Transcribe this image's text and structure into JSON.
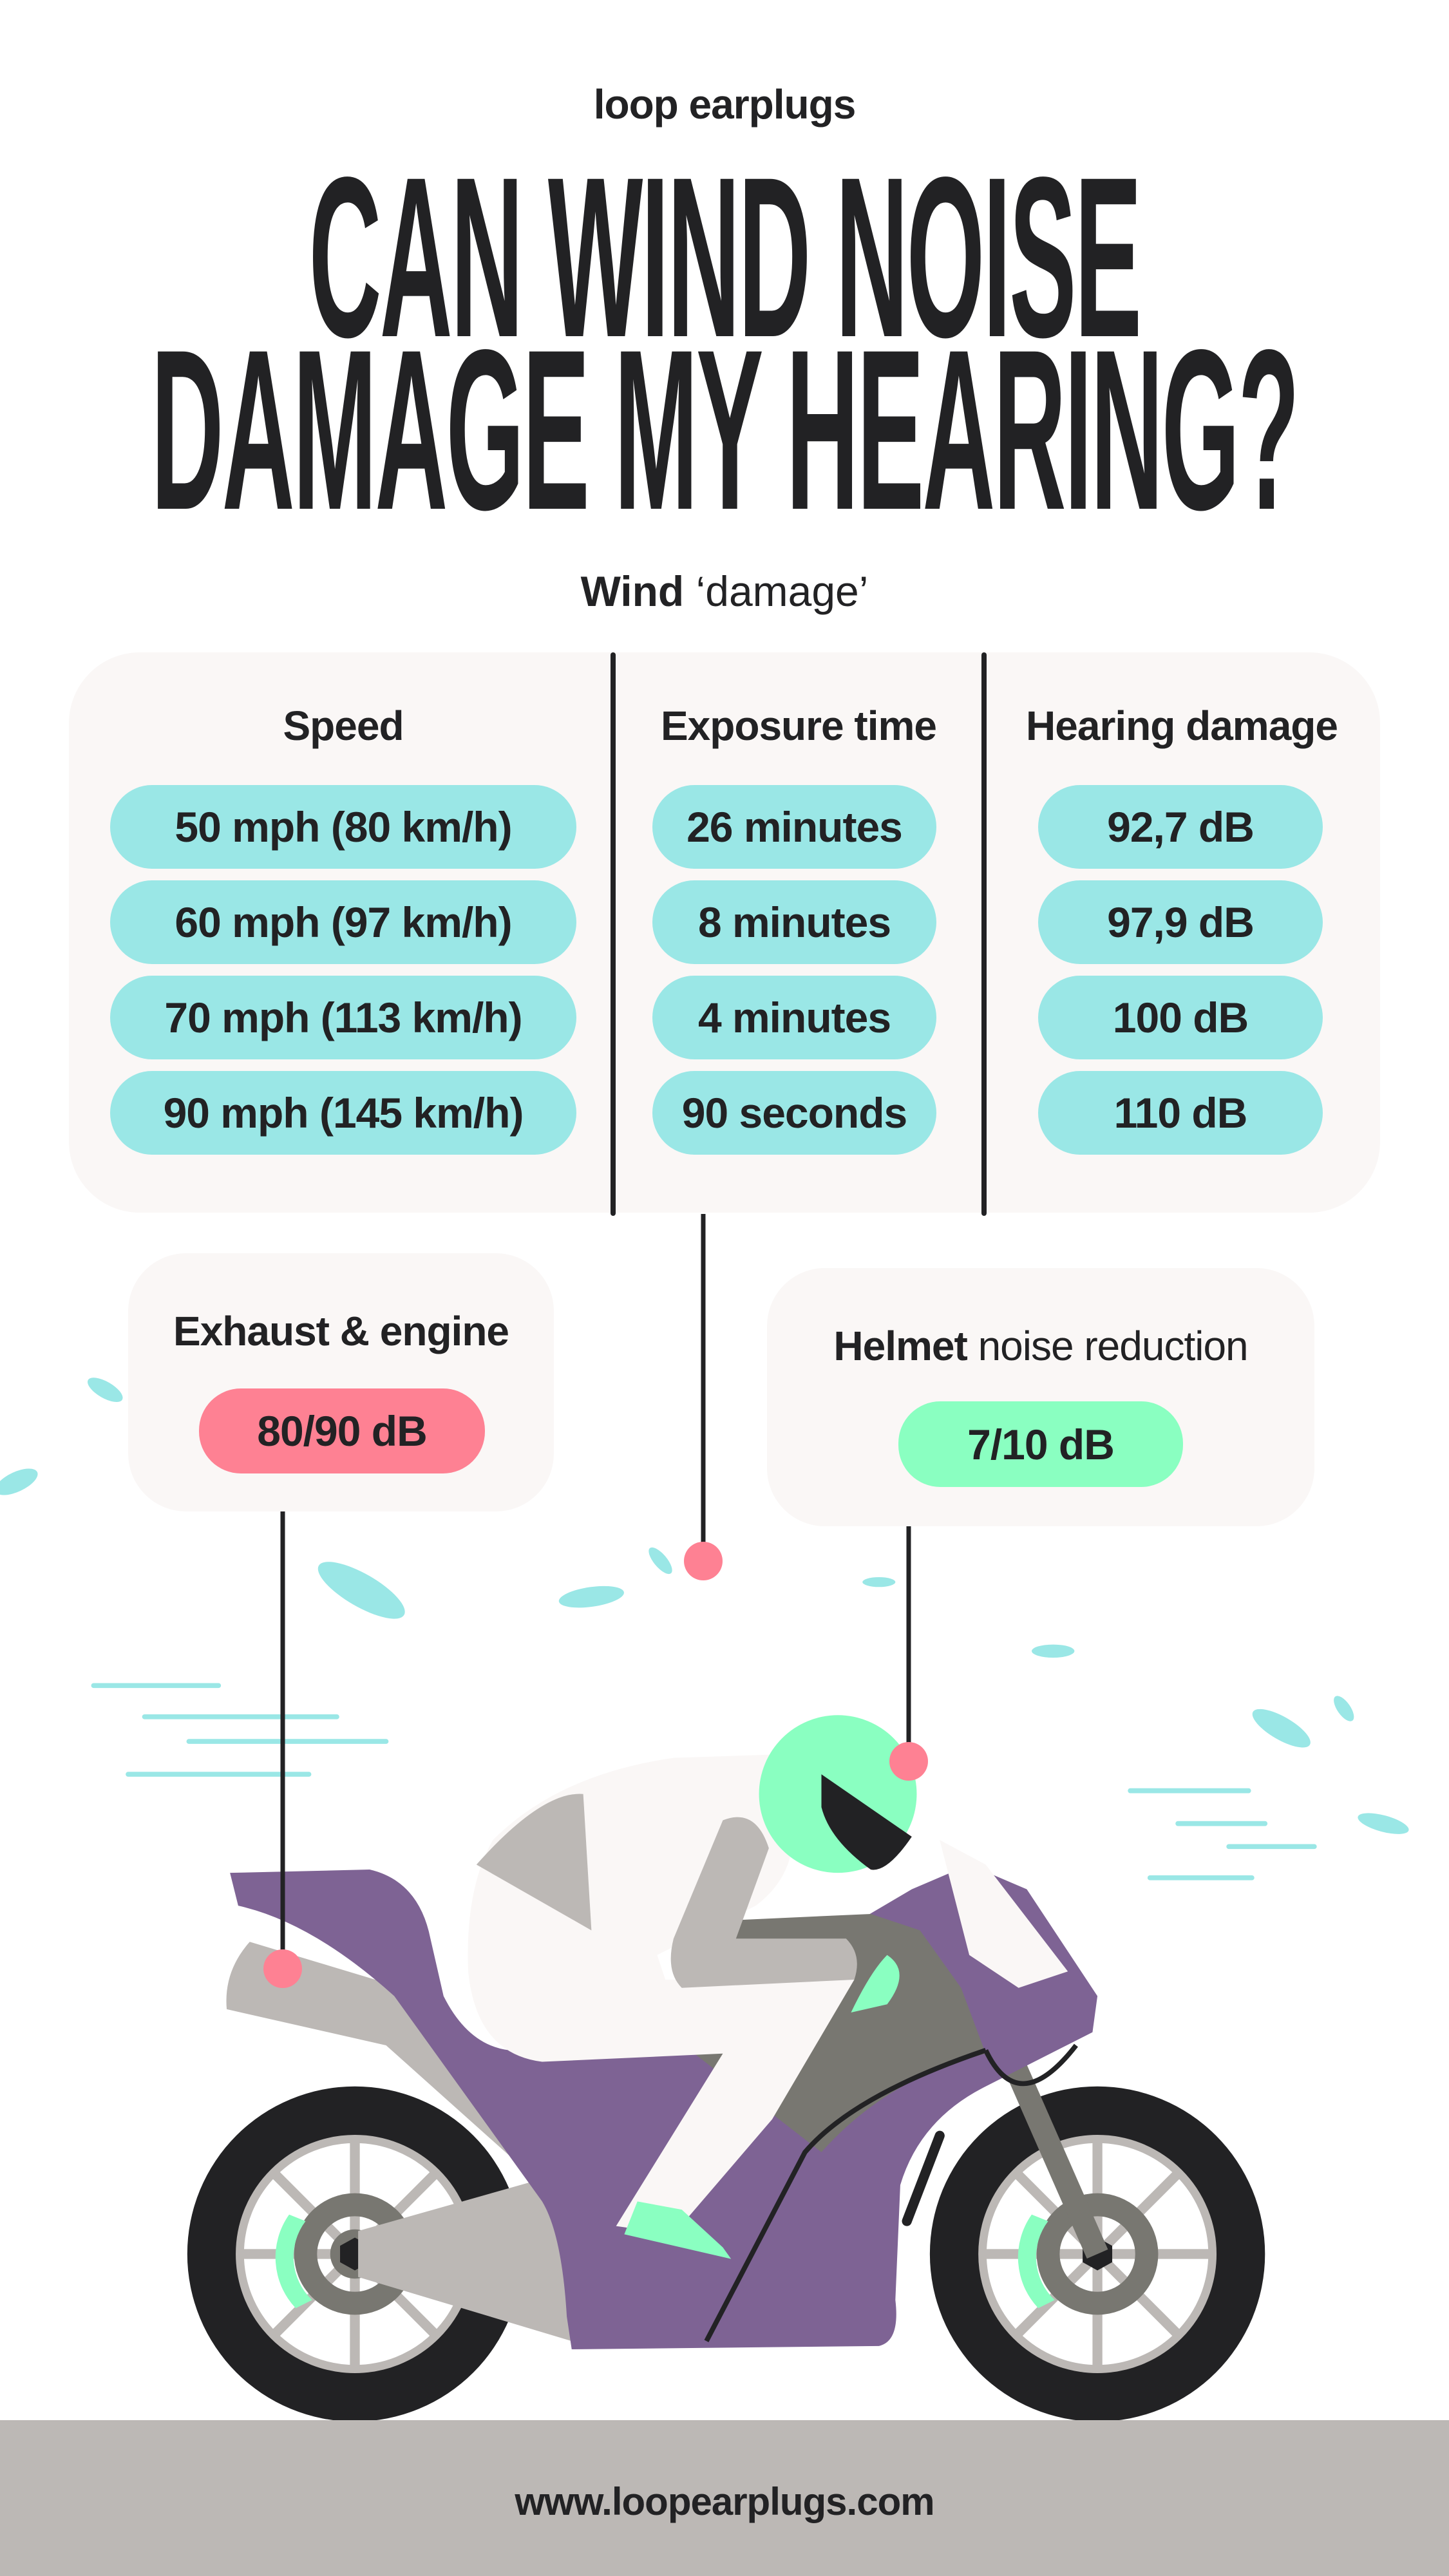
{
  "brand": "loop earplugs",
  "title": {
    "line1": "CAN WIND NOISE",
    "line2": "DAMAGE MY HEARING?"
  },
  "subtitle": {
    "bold": "Wind",
    "rest": " ‘damage’"
  },
  "table": {
    "headers": [
      "Speed",
      "Exposure time",
      "Hearing damage"
    ],
    "rows": [
      {
        "speed": "50 mph (80 km/h)",
        "exposure": "26 minutes",
        "damage": "92,7 dB"
      },
      {
        "speed": "60 mph (97 km/h)",
        "exposure": "8 minutes",
        "damage": "97,9 dB"
      },
      {
        "speed": "70 mph (113 km/h)",
        "exposure": "4 minutes",
        "damage": "100 dB"
      },
      {
        "speed": "90 mph (145 km/h)",
        "exposure": "90 seconds",
        "damage": "110 dB"
      }
    ]
  },
  "exhaust": {
    "label": "Exhaust & engine",
    "value": "80/90 dB"
  },
  "helmet": {
    "label_bold": "Helmet",
    "label_rest": " noise reduction",
    "value": "7/10 dB"
  },
  "footer": {
    "url": "www.loopearplugs.com"
  },
  "colors": {
    "pill": "#9ae7e6",
    "exhaust": "#fe8193",
    "helmet": "#8affc1",
    "bike": "#7e6394",
    "dark": "#222224",
    "footer": "#bcb8b5"
  }
}
